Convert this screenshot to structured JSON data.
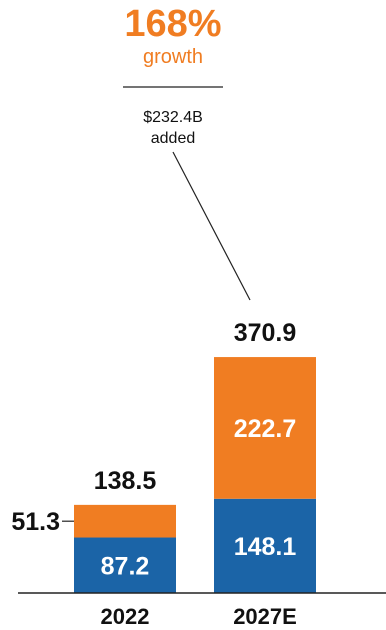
{
  "colors": {
    "blue": "#1b64a7",
    "orange": "#f07d22",
    "text": "#111111",
    "line": "#222222"
  },
  "callout": {
    "growth_value": "168%",
    "growth_label": "growth",
    "added_value": "$232.4B",
    "added_label": "added"
  },
  "chart_data": {
    "type": "bar",
    "stacked": true,
    "categories": [
      "2022",
      "2027E"
    ],
    "series": [
      {
        "values": [
          87.2,
          148.1
        ],
        "color": "#1b64a7"
      },
      {
        "values": [
          51.3,
          222.7
        ],
        "color": "#f07d22"
      }
    ],
    "totals": [
      138.5,
      370.9
    ],
    "data_labels": {
      "bottom": [
        "87.2",
        "148.1"
      ],
      "top": [
        "51.3",
        "222.7"
      ],
      "total": [
        "138.5",
        "370.9"
      ]
    },
    "ylim": [
      0,
      370.9
    ],
    "grid": false,
    "legend": "none"
  }
}
